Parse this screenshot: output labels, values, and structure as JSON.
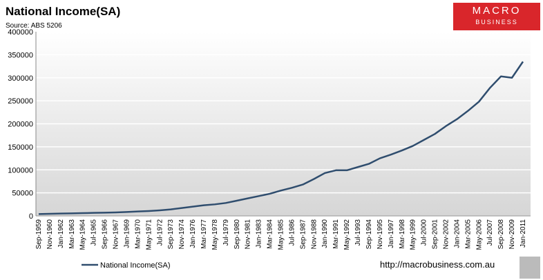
{
  "chart_data": {
    "type": "line",
    "title": "National Income(SA)",
    "subtitle": "Source: ABS 5206",
    "logo": {
      "line1": "MACRO",
      "line2": "BUSINESS"
    },
    "footer": "http://macrobusiness.com.au",
    "categories": [
      "Sep-1959",
      "Nov-1960",
      "Jan-1962",
      "Mar-1963",
      "May-1964",
      "Jul-1965",
      "Sep-1966",
      "Nov-1967",
      "Jan-1969",
      "Mar-1970",
      "May-1971",
      "Jul-1972",
      "Sep-1973",
      "Nov-1974",
      "Jan-1976",
      "Mar-1977",
      "May-1978",
      "Jul-1979",
      "Sep-1980",
      "Nov-1981",
      "Jan-1983",
      "Mar-1984",
      "May-1985",
      "Jul-1986",
      "Sep-1987",
      "Nov-1988",
      "Jan-1990",
      "Mar-1991",
      "May-1992",
      "Jul-1993",
      "Sep-1994",
      "Nov-1995",
      "Jan-1997",
      "Mar-1998",
      "May-1999",
      "Jul-2000",
      "Sep-2001",
      "Nov-2002",
      "Jan-2004",
      "Mar-2005",
      "May-2006",
      "Jul-2007",
      "Sep-2008",
      "Nov-2009",
      "Jan-2011"
    ],
    "series": [
      {
        "name": "National Income(SA)",
        "color": "#2f4d6e",
        "values": [
          4000,
          4500,
          5000,
          5500,
          6000,
          6500,
          7000,
          7500,
          8500,
          9500,
          10500,
          12000,
          14000,
          17000,
          20000,
          23000,
          25000,
          28000,
          33000,
          38000,
          43000,
          48000,
          55000,
          61000,
          68000,
          80000,
          93000,
          99000,
          99000,
          106000,
          113000,
          125000,
          133000,
          142000,
          152000,
          165000,
          178000,
          195000,
          210000,
          228000,
          248000,
          278000,
          303000,
          300000,
          335000
        ]
      }
    ],
    "ylim": [
      0,
      400000
    ],
    "yticks": [
      0,
      50000,
      100000,
      150000,
      200000,
      250000,
      300000,
      350000,
      400000
    ],
    "grid": true
  }
}
